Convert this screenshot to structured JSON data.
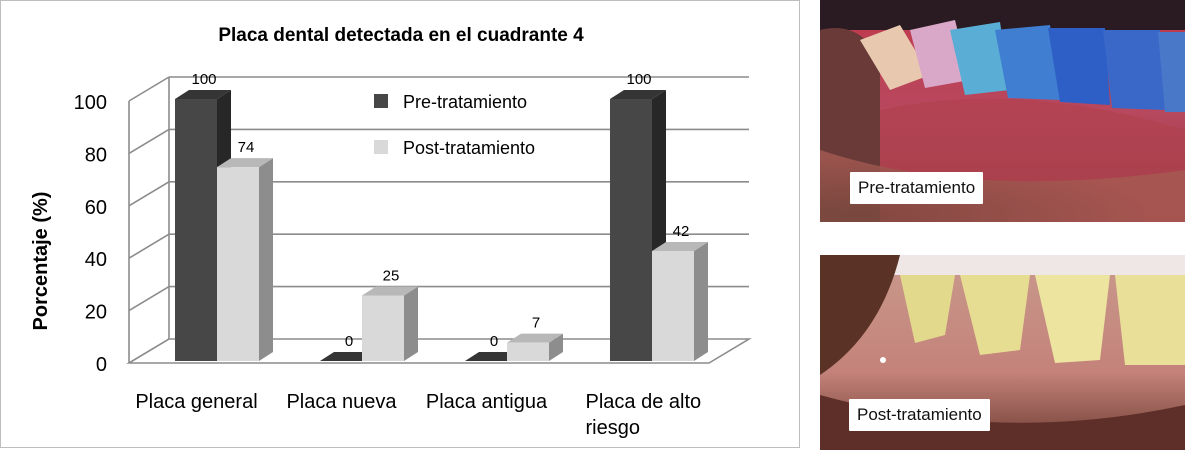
{
  "chart_data": {
    "type": "bar",
    "title": "Placa dental detectada en el cuadrante 4",
    "ylabel": "Porcentaje (%)",
    "xlabel": "",
    "ylim": [
      0,
      100
    ],
    "yticks": [
      0,
      20,
      40,
      60,
      80,
      100
    ],
    "categories": [
      [
        "Placa general"
      ],
      [
        "Placa nueva"
      ],
      [
        "Placa antigua"
      ],
      [
        "Placa de alto",
        "riesgo"
      ]
    ],
    "series": [
      {
        "name": "Pre-tratamiento",
        "values": [
          100,
          0,
          0,
          100
        ],
        "color": "#474747"
      },
      {
        "name": "Post-tratamiento",
        "values": [
          74,
          25,
          7,
          42
        ],
        "color": "#d9d9d9"
      }
    ],
    "grid": true,
    "legend": "top-center",
    "style": "3d-bar"
  },
  "photos": {
    "pre_label": "Pre-tratamiento",
    "post_label": "Post-tratamiento"
  }
}
